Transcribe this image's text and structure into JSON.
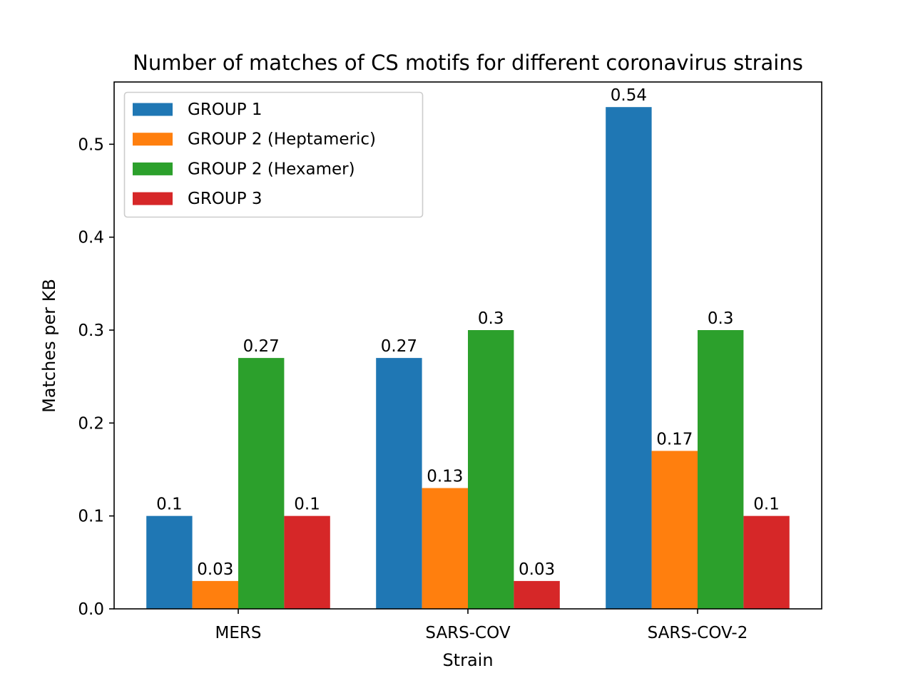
{
  "chart_data": {
    "type": "bar",
    "title": "Number of matches of CS motifs for different coronavirus strains",
    "xlabel": "Strain",
    "ylabel": "Matches per KB",
    "categories": [
      "MERS",
      "SARS-COV",
      "SARS-COV-2"
    ],
    "series": [
      {
        "name": "GROUP 1",
        "color": "#1f77b4",
        "values": [
          0.1,
          0.27,
          0.54
        ],
        "labels": [
          "0.1",
          "0.27",
          "0.54"
        ]
      },
      {
        "name": "GROUP 2 (Heptameric)",
        "color": "#ff7f0e",
        "values": [
          0.03,
          0.13,
          0.17
        ],
        "labels": [
          "0.03",
          "0.13",
          "0.17"
        ]
      },
      {
        "name": "GROUP 2 (Hexamer)",
        "color": "#2ca02c",
        "values": [
          0.27,
          0.3,
          0.3
        ],
        "labels": [
          "0.27",
          "0.3",
          "0.3"
        ]
      },
      {
        "name": "GROUP 3",
        "color": "#d62728",
        "values": [
          0.1,
          0.03,
          0.1
        ],
        "labels": [
          "0.1",
          "0.03",
          "0.1"
        ]
      }
    ],
    "yticks": [
      "0.0",
      "0.1",
      "0.2",
      "0.3",
      "0.4",
      "0.5"
    ],
    "ylim": [
      0,
      0.567
    ],
    "grid": false,
    "legend": "upper-left"
  }
}
